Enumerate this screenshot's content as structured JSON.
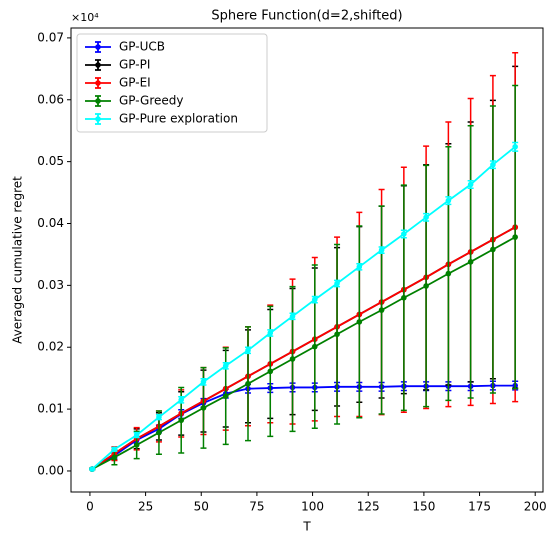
{
  "chart_data": {
    "type": "line",
    "title": "Sphere Function(d=2,shifted)",
    "xlabel": "T",
    "ylabel": "Averaged cumulative regret",
    "y_offset_label": "×10⁴",
    "x": [
      1,
      11,
      21,
      31,
      41,
      51,
      61,
      71,
      81,
      91,
      101,
      111,
      121,
      131,
      141,
      151,
      161,
      171,
      181,
      191
    ],
    "series": [
      {
        "name": "GP-UCB",
        "color": "#0000ff",
        "values": [
          0.0003,
          0.0025,
          0.005,
          0.0068,
          0.0092,
          0.011,
          0.0125,
          0.0133,
          0.0134,
          0.0135,
          0.0135,
          0.0136,
          0.0136,
          0.0136,
          0.0137,
          0.0137,
          0.0137,
          0.0137,
          0.0138,
          0.0138
        ],
        "errors": [
          0.0001,
          0.0004,
          0.0005,
          0.0006,
          0.0007,
          0.0007,
          0.0007,
          0.0007,
          0.0007,
          0.0007,
          0.0007,
          0.0007,
          0.0007,
          0.0007,
          0.0007,
          0.0007,
          0.0007,
          0.0007,
          0.0007,
          0.0007
        ]
      },
      {
        "name": "GP-PI",
        "color": "#000000",
        "values": [
          0.0003,
          0.0028,
          0.0052,
          0.0072,
          0.0093,
          0.0113,
          0.0133,
          0.0153,
          0.0173,
          0.0193,
          0.0213,
          0.0233,
          0.0253,
          0.0273,
          0.0293,
          0.0313,
          0.0334,
          0.0354,
          0.0374,
          0.0394
        ],
        "errors": [
          0.0001,
          0.001,
          0.0016,
          0.0022,
          0.0035,
          0.005,
          0.0062,
          0.0075,
          0.0088,
          0.0102,
          0.0115,
          0.0128,
          0.0142,
          0.0155,
          0.0168,
          0.0182,
          0.0195,
          0.021,
          0.0225,
          0.026
        ]
      },
      {
        "name": "GP-EI",
        "color": "#ff0000",
        "values": [
          0.0003,
          0.0028,
          0.0052,
          0.0072,
          0.0093,
          0.0113,
          0.0133,
          0.0153,
          0.0173,
          0.0193,
          0.0213,
          0.0233,
          0.0253,
          0.0273,
          0.0293,
          0.0313,
          0.0334,
          0.0354,
          0.0374,
          0.0394
        ],
        "errors": [
          0.0001,
          0.0011,
          0.0018,
          0.0025,
          0.0038,
          0.0054,
          0.0067,
          0.008,
          0.0095,
          0.0117,
          0.0132,
          0.0145,
          0.0165,
          0.0182,
          0.0198,
          0.0212,
          0.023,
          0.0248,
          0.0265,
          0.0282
        ]
      },
      {
        "name": "GP-Greedy",
        "color": "#008000",
        "values": [
          0.0003,
          0.0022,
          0.0042,
          0.0062,
          0.0082,
          0.0102,
          0.0121,
          0.0141,
          0.0161,
          0.0181,
          0.0201,
          0.0221,
          0.0241,
          0.026,
          0.028,
          0.0299,
          0.0319,
          0.0338,
          0.0358,
          0.0378
        ],
        "errors": [
          0.0001,
          0.0012,
          0.0022,
          0.0035,
          0.0053,
          0.0065,
          0.0078,
          0.0092,
          0.0105,
          0.0117,
          0.0132,
          0.0145,
          0.0155,
          0.0168,
          0.0182,
          0.0195,
          0.0205,
          0.022,
          0.0232,
          0.0245
        ]
      },
      {
        "name": "GP-Pure exploration",
        "color": "#00ffff",
        "values": [
          0.0003,
          0.0035,
          0.0058,
          0.0087,
          0.0115,
          0.0144,
          0.017,
          0.0195,
          0.0223,
          0.025,
          0.0277,
          0.0303,
          0.033,
          0.0357,
          0.0383,
          0.041,
          0.0437,
          0.0463,
          0.0495,
          0.0524
        ],
        "errors": [
          0.0001,
          0.0003,
          0.0004,
          0.0004,
          0.0005,
          0.0005,
          0.0005,
          0.0005,
          0.0005,
          0.0005,
          0.0005,
          0.0005,
          0.0005,
          0.0005,
          0.0006,
          0.0006,
          0.0006,
          0.0006,
          0.0006,
          0.0007
        ]
      }
    ],
    "xlim": [
      -8.5,
      203.5
    ],
    "xticks": [
      0,
      25,
      50,
      75,
      100,
      125,
      150,
      175,
      200
    ],
    "ylim": [
      -0.0034,
      0.0716
    ],
    "yticks": [
      {
        "value": 0,
        "label": "0.00"
      },
      {
        "value": 0.01,
        "label": "0.01"
      },
      {
        "value": 0.02,
        "label": "0.02"
      },
      {
        "value": 0.03,
        "label": "0.03"
      },
      {
        "value": 0.04,
        "label": "0.04"
      },
      {
        "value": 0.05,
        "label": "0.05"
      },
      {
        "value": 0.06,
        "label": "0.06"
      },
      {
        "value": 0.07,
        "label": "0.07"
      }
    ],
    "legend": "upper left"
  }
}
